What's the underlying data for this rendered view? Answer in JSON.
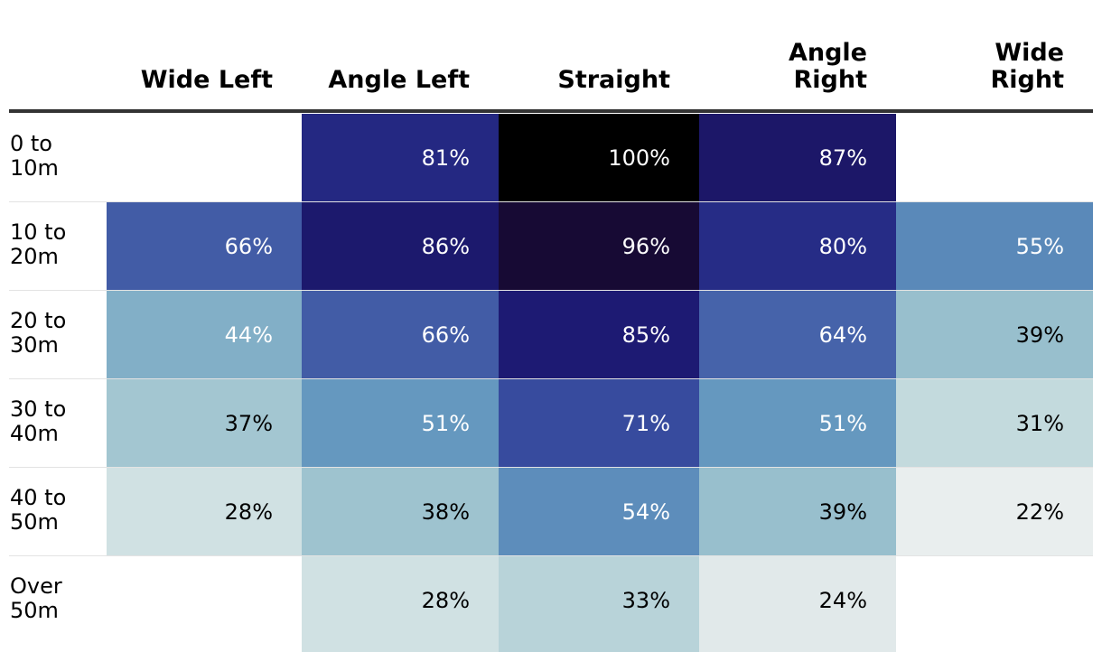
{
  "chart_data": {
    "type": "heatmap",
    "columns": [
      "Wide Left",
      "Angle Left",
      "Straight",
      "Angle Right",
      "Wide Right"
    ],
    "rows": [
      "0 to 10m",
      "10 to 20m",
      "20 to 30m",
      "30 to 40m",
      "40 to 50m",
      "Over 50m"
    ],
    "values": [
      [
        null,
        81,
        100,
        87,
        null
      ],
      [
        66,
        86,
        96,
        80,
        55
      ],
      [
        44,
        66,
        85,
        64,
        39
      ],
      [
        37,
        51,
        71,
        51,
        31
      ],
      [
        28,
        38,
        54,
        39,
        22
      ],
      [
        null,
        28,
        33,
        24,
        null
      ]
    ],
    "unit": "%",
    "color_scale": [
      {
        "v": 20,
        "color": "#f2f2f2"
      },
      {
        "v": 31,
        "color": "#c3dadd"
      },
      {
        "v": 40,
        "color": "#93bccb"
      },
      {
        "v": 52,
        "color": "#6195be"
      },
      {
        "v": 65,
        "color": "#445fa8"
      },
      {
        "v": 75,
        "color": "#2e3e98"
      },
      {
        "v": 85,
        "color": "#1d1a73"
      },
      {
        "v": 96,
        "color": "#170a34"
      },
      {
        "v": 100,
        "color": "#000000"
      }
    ],
    "text_colors": {
      "light": "#ffffff",
      "dark": "#000000"
    }
  }
}
